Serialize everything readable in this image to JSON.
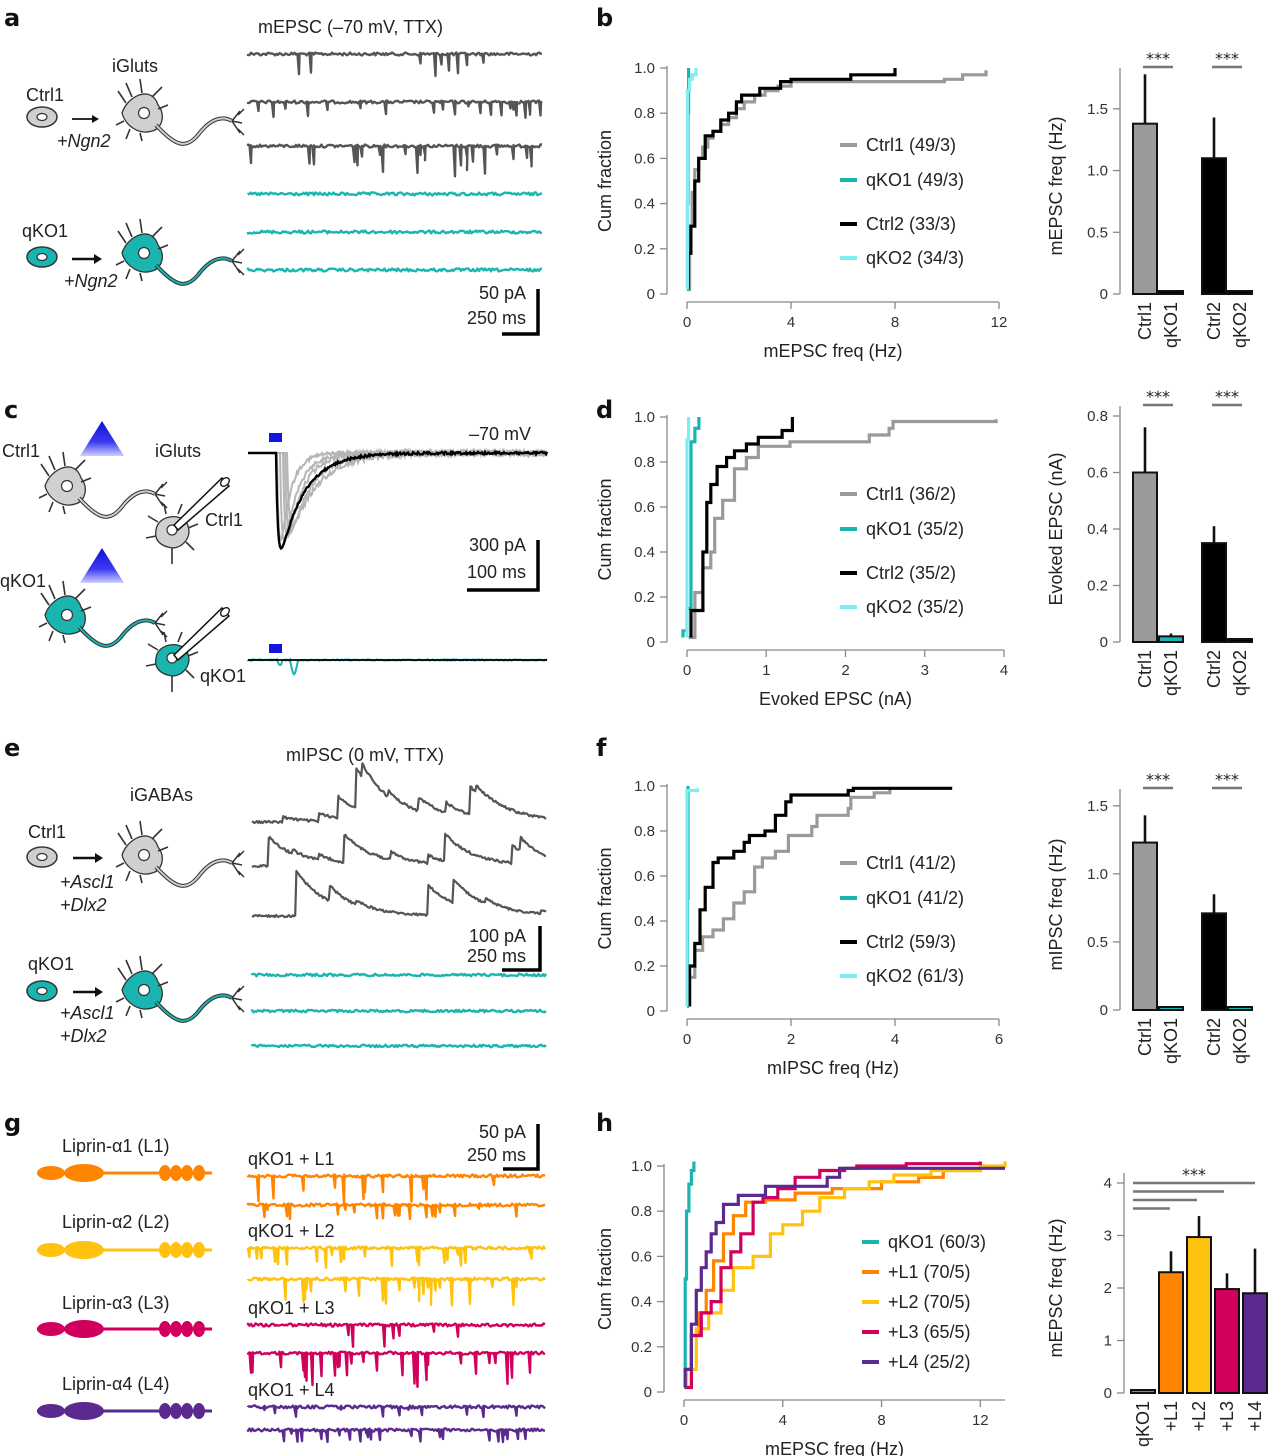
{
  "colors": {
    "ctrl1": "#9a9a9a",
    "ctrl2": "#000000",
    "qko1": "#1ab5b0",
    "qko2": "#7eeef0",
    "trace_gray": "#555555",
    "blue_light": "#1414e0",
    "L1": "#ff8400",
    "L2": "#ffc20e",
    "L3": "#d0005c",
    "L4": "#5b2a8f",
    "sig_bar": "#777777"
  },
  "panels": {
    "a": {
      "letter": "a",
      "title": "mEPSC (–70 mV, TTX)",
      "cell_type": "iGluts",
      "ctrl_label": "Ctrl1",
      "ctrl_factor": "+Ngn2",
      "ko_label": "qKO1",
      "ko_factor": "+Ngn2",
      "scale_y": "50 pA",
      "scale_x": "250 ms"
    },
    "c": {
      "letter": "c",
      "voltage": "–70 mV",
      "cell_type": "iGluts",
      "ctrl_label": "Ctrl1",
      "ctrl_recorded": "Ctrl1",
      "ko_label": "qKO1",
      "ko_recorded": "qKO1",
      "scale_y": "300 pA",
      "scale_x": "100 ms"
    },
    "e": {
      "letter": "e",
      "title": "mIPSC (0 mV, TTX)",
      "cell_type": "iGABAs",
      "ctrl_label": "Ctrl1",
      "ctrl_factor1": "+Ascl1",
      "ctrl_factor2": "+Dlx2",
      "ko_label": "qKO1",
      "ko_factor1": "+Ascl1",
      "ko_factor2": "+Dlx2",
      "scale_y": "100 pA",
      "scale_x": "250 ms"
    },
    "g": {
      "letter": "g",
      "proteins": [
        "Liprin-α1 (L1)",
        "Liprin-α2 (L2)",
        "Liprin-α3 (L3)",
        "Liprin-α4 (L4)"
      ],
      "trace_labels": [
        "qKO1 + L1",
        "qKO1 + L2",
        "qKO1 + L3",
        "qKO1 + L4"
      ],
      "scale_y": "50 pA",
      "scale_x": "250 ms"
    }
  },
  "chart_data": [
    {
      "id": "b-cdf",
      "letter": "b",
      "type": "line",
      "title": "",
      "xlabel": "mEPSC freq (Hz)",
      "ylabel": "Cum fraction",
      "xlim": [
        0,
        12
      ],
      "ylim": [
        0,
        1.0
      ],
      "xticks": [
        "0",
        "4",
        "8",
        "12"
      ],
      "xtick_values": [
        0,
        4,
        8,
        12
      ],
      "yticks": [
        "0",
        "0.2",
        "0.4",
        "0.6",
        "0.8",
        "1.0"
      ],
      "ytick_values": [
        0,
        0.2,
        0.4,
        0.6,
        0.8,
        1.0
      ],
      "legend": "right",
      "series": [
        {
          "name": "Ctrl1  (49/3)",
          "color_key": "ctrl1",
          "x": [
            0.05,
            0.1,
            0.2,
            0.3,
            0.45,
            0.6,
            0.8,
            1.0,
            1.3,
            1.6,
            1.9,
            2.2,
            2.6,
            3.0,
            3.5,
            4.0,
            6.0,
            9.9,
            10.6,
            11.5
          ],
          "y": [
            0.02,
            0.3,
            0.45,
            0.55,
            0.6,
            0.65,
            0.69,
            0.72,
            0.75,
            0.78,
            0.82,
            0.85,
            0.88,
            0.9,
            0.92,
            0.94,
            0.94,
            0.95,
            0.97,
            0.99
          ]
        },
        {
          "name": "qKO1 (49/3)",
          "color_key": "qko1",
          "x": [
            0.0,
            0.02,
            0.04,
            0.06
          ],
          "y": [
            0.02,
            0.4,
            0.8,
            1.0
          ]
        },
        {
          "name": "Ctrl2  (33/3)",
          "color_key": "ctrl2",
          "x": [
            0.05,
            0.15,
            0.3,
            0.45,
            0.7,
            1.0,
            1.3,
            1.6,
            1.9,
            2.1,
            2.8,
            3.6,
            4.0,
            6.3,
            8.0
          ],
          "y": [
            0.18,
            0.3,
            0.5,
            0.6,
            0.7,
            0.72,
            0.77,
            0.8,
            0.85,
            0.88,
            0.91,
            0.94,
            0.95,
            0.97,
            1.0
          ]
        },
        {
          "name": "qKO2 (34/3)",
          "color_key": "qko2",
          "x": [
            0.02,
            0.1,
            0.2,
            0.35
          ],
          "y": [
            0.9,
            0.95,
            0.97,
            1.0
          ]
        }
      ]
    },
    {
      "id": "b-bar",
      "type": "bar",
      "ylabel": "mEPSC freq (Hz)",
      "ylim": [
        0,
        1.75
      ],
      "yticks": [
        "0",
        "0.5",
        "1.0",
        "1.5"
      ],
      "ytick_values": [
        0,
        0.5,
        1.0,
        1.5
      ],
      "categories": [
        "Ctrl1",
        "qKO1",
        "Ctrl2",
        "qKO2"
      ],
      "values": [
        1.38,
        0.02,
        1.1,
        0.02
      ],
      "errors": [
        0.4,
        0.0,
        0.33,
        0.0
      ],
      "color_keys": [
        "ctrl1",
        "ctrl2",
        "ctrl2",
        "ctrl2"
      ],
      "significance": [
        "***",
        "***"
      ]
    },
    {
      "id": "d-cdf",
      "letter": "d",
      "type": "line",
      "xlabel": "Evoked EPSC (nA)",
      "ylabel": "Cum fraction",
      "xlim": [
        0,
        4
      ],
      "ylim": [
        0,
        1.0
      ],
      "xticks": [
        "0",
        "1",
        "2",
        "3",
        "4"
      ],
      "xtick_values": [
        0,
        1,
        2,
        3,
        4
      ],
      "yticks": [
        "0",
        "0.2",
        "0.4",
        "0.6",
        "0.8",
        "1.0"
      ],
      "ytick_values": [
        0,
        0.2,
        0.4,
        0.6,
        0.8,
        1.0
      ],
      "legend": "right",
      "series": [
        {
          "name": "Ctrl1    (36/2)",
          "color_key": "ctrl1",
          "x": [
            0.02,
            0.1,
            0.2,
            0.3,
            0.35,
            0.45,
            0.6,
            0.75,
            0.9,
            1.3,
            2.3,
            2.55,
            2.6,
            3.9
          ],
          "y": [
            0.02,
            0.22,
            0.33,
            0.4,
            0.55,
            0.63,
            0.77,
            0.82,
            0.87,
            0.89,
            0.92,
            0.95,
            0.98,
            0.99
          ]
        },
        {
          "name": "qKO1 (35/2)",
          "color_key": "qko1",
          "x": [
            -0.05,
            0.0,
            0.05,
            0.1,
            0.15
          ],
          "y": [
            0.05,
            0.15,
            0.89,
            0.95,
            1.0
          ]
        },
        {
          "name": "Ctrl2    (35/2)",
          "color_key": "ctrl2",
          "x": [
            0.05,
            0.2,
            0.25,
            0.3,
            0.38,
            0.5,
            0.6,
            0.75,
            0.9,
            1.2,
            1.33
          ],
          "y": [
            0.14,
            0.4,
            0.62,
            0.7,
            0.78,
            0.82,
            0.85,
            0.88,
            0.91,
            0.94,
            1.0
          ]
        },
        {
          "name": "qKO2 (35/2)",
          "color_key": "qko2",
          "x": [
            0.0,
            0.02
          ],
          "y": [
            0.9,
            1.0
          ]
        }
      ]
    },
    {
      "id": "d-bar",
      "type": "bar",
      "ylabel": "Evoked EPSC (nA)",
      "ylim": [
        0,
        0.8
      ],
      "yticks": [
        "0",
        "0.2",
        "0.4",
        "0.6",
        "0.8"
      ],
      "ytick_values": [
        0,
        0.2,
        0.4,
        0.6,
        0.8
      ],
      "categories": [
        "Ctrl1",
        "qKO1",
        "Ctrl2",
        "qKO2"
      ],
      "values": [
        0.6,
        0.02,
        0.35,
        0.01
      ],
      "errors": [
        0.16,
        0.01,
        0.06,
        0.0
      ],
      "color_keys": [
        "ctrl1",
        "qko1",
        "ctrl2",
        "ctrl2"
      ],
      "significance": [
        "***",
        "***"
      ]
    },
    {
      "id": "f-cdf",
      "letter": "f",
      "type": "line",
      "xlabel": "mIPSC freq (Hz)",
      "ylabel": "Cum fraction",
      "xlim": [
        0,
        6
      ],
      "ylim": [
        0,
        1.0
      ],
      "xticks": [
        "0",
        "2",
        "4",
        "6"
      ],
      "xtick_values": [
        0,
        2,
        4,
        6
      ],
      "yticks": [
        "0",
        "0.2",
        "0.4",
        "0.6",
        "0.8",
        "1.0"
      ],
      "ytick_values": [
        0,
        0.2,
        0.4,
        0.6,
        0.8,
        1.0
      ],
      "legend": "right",
      "series": [
        {
          "name": "Ctrl1    (41/2)",
          "color_key": "ctrl1",
          "x": [
            0.05,
            0.15,
            0.3,
            0.5,
            0.7,
            0.9,
            1.1,
            1.3,
            1.45,
            1.7,
            1.95,
            2.4,
            2.5,
            3.1,
            3.15,
            3.6,
            3.9
          ],
          "y": [
            0.15,
            0.27,
            0.33,
            0.36,
            0.41,
            0.48,
            0.53,
            0.64,
            0.68,
            0.71,
            0.78,
            0.82,
            0.87,
            0.9,
            0.95,
            0.97,
            0.99
          ]
        },
        {
          "name": "qKO1 (41/2)",
          "color_key": "qko1",
          "x": [
            0.0,
            0.01,
            0.02
          ],
          "y": [
            0.02,
            0.5,
            1.0
          ]
        },
        {
          "name": "Ctrl2    (59/3)",
          "color_key": "ctrl2",
          "x": [
            0.05,
            0.15,
            0.25,
            0.35,
            0.5,
            0.6,
            0.9,
            1.1,
            1.2,
            1.5,
            1.7,
            1.9,
            2.0,
            3.1,
            3.2,
            5.1
          ],
          "y": [
            0.2,
            0.3,
            0.45,
            0.55,
            0.66,
            0.68,
            0.71,
            0.75,
            0.78,
            0.8,
            0.87,
            0.93,
            0.96,
            0.98,
            0.99,
            0.99
          ]
        },
        {
          "name": "qKO2 (61/3)",
          "color_key": "qko2",
          "x": [
            0.0,
            0.2
          ],
          "y": [
            0.98,
            0.99
          ]
        }
      ]
    },
    {
      "id": "f-bar",
      "type": "bar",
      "ylabel": "mIPSC freq (Hz)",
      "ylim": [
        0,
        1.55
      ],
      "yticks": [
        "0",
        "0.5",
        "1.0",
        "1.5"
      ],
      "ytick_values": [
        0,
        0.5,
        1.0,
        1.5
      ],
      "categories": [
        "Ctrl1",
        "qKO1",
        "Ctrl2",
        "qKO2"
      ],
      "values": [
        1.23,
        0.02,
        0.71,
        0.02
      ],
      "errors": [
        0.2,
        0.0,
        0.14,
        0.0
      ],
      "color_keys": [
        "ctrl1",
        "qko1",
        "ctrl2",
        "qko1"
      ],
      "significance": [
        "***",
        "***"
      ]
    },
    {
      "id": "h-cdf",
      "letter": "h",
      "type": "line",
      "xlabel": "mEPSC freq (Hz)",
      "ylabel": "Cum fraction",
      "xlim": [
        0,
        13
      ],
      "ylim": [
        0,
        1.0
      ],
      "xticks": [
        "0",
        "4",
        "8",
        "12"
      ],
      "xtick_values": [
        0,
        4,
        8,
        12
      ],
      "yticks": [
        "0",
        "0.2",
        "0.4",
        "0.6",
        "0.8",
        "1.0"
      ],
      "ytick_values": [
        0,
        0.2,
        0.4,
        0.6,
        0.8,
        1.0
      ],
      "legend": "right",
      "series": [
        {
          "name": "qKO1 (60/3)",
          "color_key": "qko1",
          "x": [
            0.0,
            0.05,
            0.1,
            0.2,
            0.3,
            0.4
          ],
          "y": [
            0.02,
            0.5,
            0.8,
            0.92,
            0.98,
            1.02
          ]
        },
        {
          "name": "+L1 (70/5)",
          "color_key": "L1",
          "x": [
            0.1,
            0.3,
            0.6,
            0.9,
            1.2,
            1.6,
            2.0,
            2.5,
            3.3,
            4.5,
            6.0,
            8.0,
            9.5,
            10.5,
            12.0
          ],
          "y": [
            0.1,
            0.25,
            0.35,
            0.45,
            0.58,
            0.7,
            0.78,
            0.84,
            0.85,
            0.88,
            0.9,
            0.93,
            0.95,
            0.98,
            1.0
          ]
        },
        {
          "name": "+L2 (70/5)",
          "color_key": "L2",
          "x": [
            0.1,
            0.5,
            1.0,
            1.5,
            2.0,
            2.8,
            3.5,
            4.0,
            4.8,
            5.5,
            6.5,
            7.5,
            8.5,
            10.0,
            12.0,
            13.0
          ],
          "y": [
            0.1,
            0.28,
            0.35,
            0.45,
            0.55,
            0.6,
            0.7,
            0.74,
            0.8,
            0.86,
            0.9,
            0.93,
            0.96,
            0.98,
            1.0,
            1.02
          ]
        },
        {
          "name": "+L3 (65/5)",
          "color_key": "L3",
          "x": [
            0.05,
            0.3,
            0.7,
            1.1,
            1.5,
            1.9,
            2.3,
            2.8,
            3.2,
            3.8,
            4.5,
            5.5,
            6.5,
            7.0,
            9.0,
            12.0
          ],
          "y": [
            0.02,
            0.25,
            0.35,
            0.4,
            0.55,
            0.62,
            0.7,
            0.84,
            0.86,
            0.9,
            0.95,
            0.98,
            0.99,
            1.0,
            1.01,
            1.02
          ]
        },
        {
          "name": "+L4 (25/2)",
          "color_key": "L4",
          "x": [
            0.05,
            0.3,
            0.5,
            0.7,
            0.9,
            1.1,
            1.3,
            1.6,
            2.2,
            3.3,
            5.8,
            6.3,
            13.0
          ],
          "y": [
            0.1,
            0.3,
            0.45,
            0.55,
            0.62,
            0.7,
            0.75,
            0.83,
            0.87,
            0.91,
            0.95,
            0.99,
            0.99
          ]
        }
      ]
    },
    {
      "id": "h-bar",
      "type": "bar",
      "ylabel": "mEPSC freq (Hz)",
      "ylim": [
        0,
        4
      ],
      "yticks": [
        "0",
        "1",
        "2",
        "3",
        "4"
      ],
      "ytick_values": [
        0,
        1,
        2,
        3,
        4
      ],
      "categories": [
        "qKO1",
        "+L1",
        "+L2",
        "+L3",
        "+L4"
      ],
      "values": [
        0.05,
        2.3,
        2.97,
        1.98,
        1.9
      ],
      "errors": [
        0.0,
        0.4,
        0.4,
        0.3,
        0.85
      ],
      "color_keys": [
        "qko1",
        "L1",
        "L2",
        "L3",
        "L4"
      ],
      "significance": [
        "***"
      ]
    }
  ]
}
